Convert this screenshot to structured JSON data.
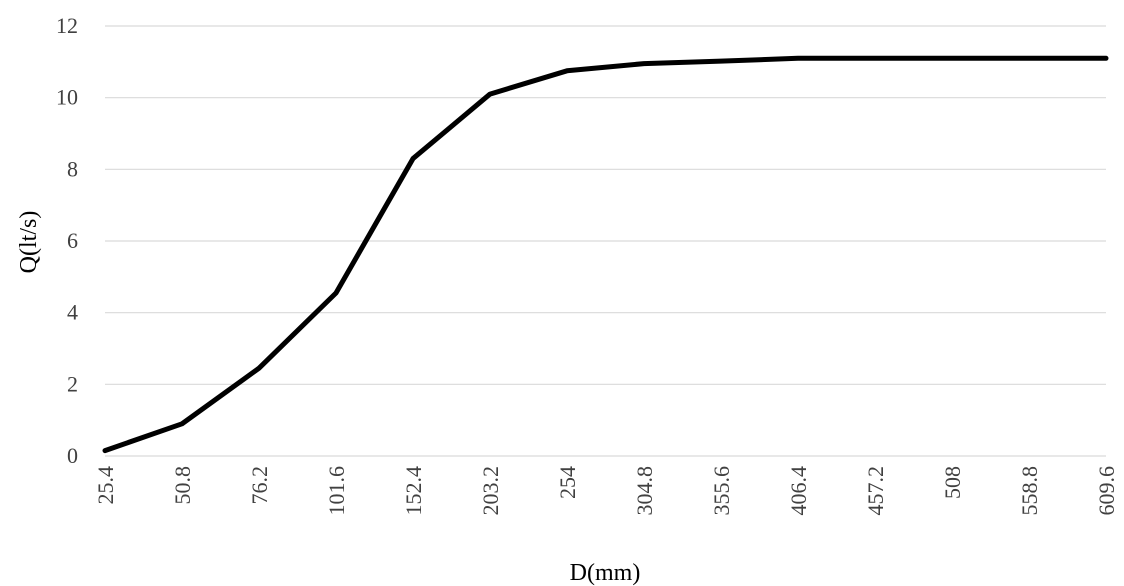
{
  "chart_data": {
    "type": "line",
    "xlabel": "D(mm)",
    "ylabel": "Q(lt/s)",
    "categories": [
      "25.4",
      "50.8",
      "76.2",
      "101.6",
      "152.4",
      "203.2",
      "254",
      "304.8",
      "355.6",
      "406.4",
      "457.2",
      "508",
      "558.8",
      "609.6"
    ],
    "series": [
      {
        "values": [
          0.15,
          0.9,
          2.45,
          4.55,
          8.3,
          10.1,
          10.75,
          10.95,
          11.02,
          11.1,
          11.1,
          11.1,
          11.1,
          11.1
        ]
      }
    ],
    "ylim": [
      0,
      12
    ],
    "yticks": [
      "0",
      "2",
      "4",
      "6",
      "8",
      "10",
      "12"
    ],
    "grid": true,
    "colors": {
      "line": "#000000",
      "grid": "#d9d9d9",
      "tick_text": "#404040"
    }
  }
}
